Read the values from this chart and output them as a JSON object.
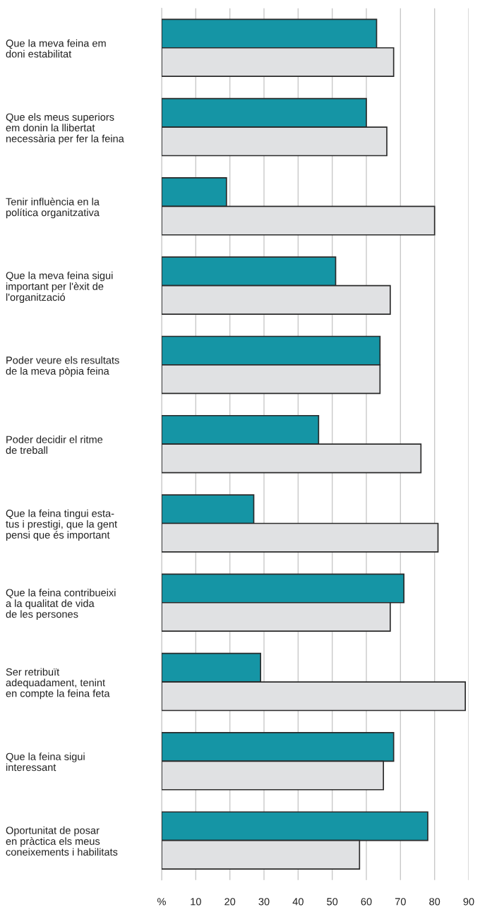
{
  "chart_data": {
    "type": "bar",
    "orientation": "horizontal",
    "categories": [
      "Que la meva feina em\ndoni estabilitat",
      "Que els meus superiors\nem donin la llibertat\nnecessària per fer la feina",
      "Tenir influència en la\npolítica organitzativa",
      "Que la meva feina sigui\nimportant per l'èxit de\nl'organització",
      "Poder veure els resultats\nde la meva pòpia feina",
      "Poder decidir el ritme\nde treball",
      "Que la feina tingui esta-\ntus i prestigi, que la gent\npensi que és important",
      "Que la feina contribueixi\na la qualitat de vida\nde les persones",
      "Ser retribuït\nadequadament, tenint\nen compte la feina feta",
      "Que la feina sigui\ninteressant",
      "Oportunitat de posar\nen pràctica els meus\nconeixements i habilitats"
    ],
    "series": [
      {
        "color": "#1595a5",
        "values": [
          63,
          60,
          19,
          51,
          64,
          46,
          27,
          71,
          29,
          68,
          78
        ]
      },
      {
        "color": "#e0e1e3",
        "values": [
          68,
          66,
          80,
          67,
          64,
          76,
          81,
          67,
          89,
          65,
          58
        ]
      }
    ],
    "xlim": [
      0,
      90
    ],
    "xticks": [
      {
        "value": 0,
        "label": "%"
      },
      10,
      20,
      30,
      40,
      50,
      60,
      70,
      80,
      90
    ],
    "grid": "x"
  }
}
